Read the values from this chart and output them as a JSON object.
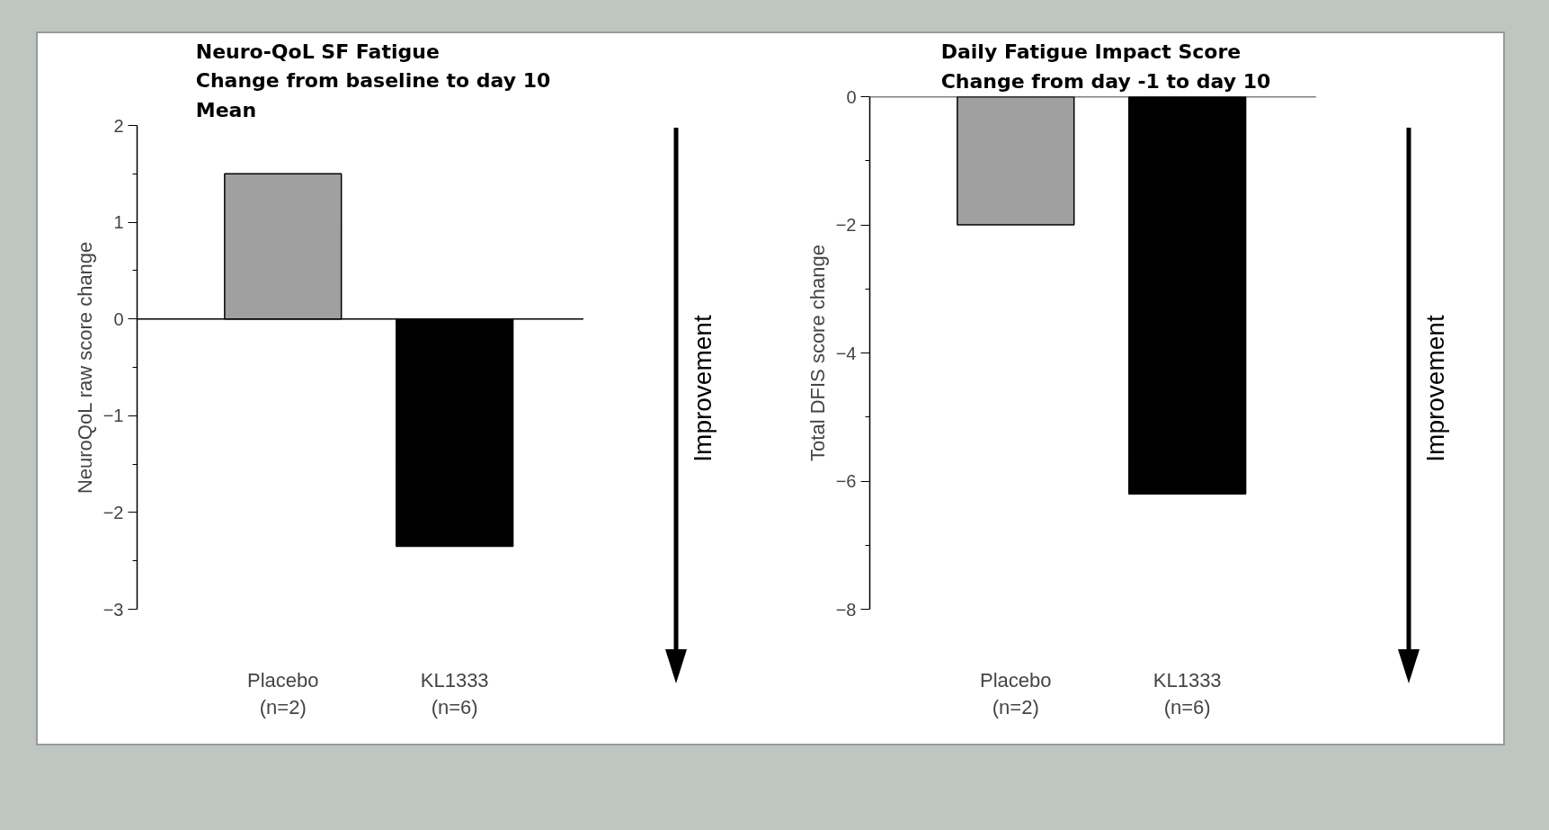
{
  "chart_data": [
    {
      "type": "bar",
      "title": "Neuro-QoL SF Fatigue\nChange from baseline to day 10\nMean",
      "ylabel": "NeuroQoL raw score change",
      "categories": [
        "Placebo\n(n=2)",
        "KL1333\n(n=6)"
      ],
      "values": [
        1.5,
        -2.35
      ],
      "colors": [
        "#a0a0a0",
        "#000000"
      ],
      "ylim": [
        -3,
        2
      ],
      "yticks": [
        -3,
        {
          "value": -2.5,
          "label": null
        },
        -2,
        {
          "value": -1.5,
          "label": null
        },
        -1,
        {
          "value": -0.5,
          "label": null
        },
        0,
        {
          "value": 0.5,
          "label": null
        },
        1,
        {
          "value": 1.5,
          "label": null
        },
        2
      ],
      "ref_lines": [
        {
          "axis": "y",
          "value": 0,
          "color": "#000000"
        }
      ],
      "annotations": [
        "Improvement"
      ],
      "grid": false
    },
    {
      "type": "bar",
      "title": "Daily Fatigue Impact Score\nChange from day -1 to day 10",
      "ylabel": "Total DFIS score change",
      "categories": [
        "Placebo\n(n=2)",
        "KL1333\n(n=6)"
      ],
      "values": [
        -2.0,
        -6.2
      ],
      "colors": [
        "#a0a0a0",
        "#000000"
      ],
      "ylim": [
        -8,
        0
      ],
      "yticks": [
        -8,
        {
          "value": -7,
          "label": null
        },
        -6,
        {
          "value": -5,
          "label": null
        },
        -4,
        {
          "value": -3,
          "label": null
        },
        -2,
        {
          "value": -1,
          "label": null
        },
        0
      ],
      "ref_lines": [
        {
          "axis": "y",
          "value": 0,
          "color": "#000000"
        }
      ],
      "annotations": [
        "Improvement"
      ],
      "grid": false
    }
  ]
}
